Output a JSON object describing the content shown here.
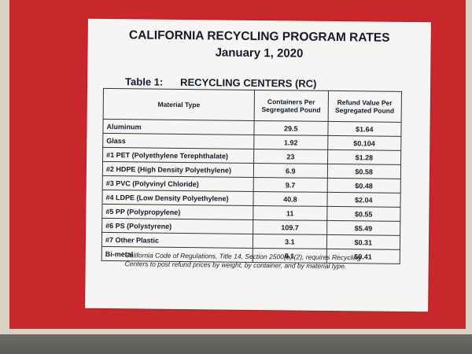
{
  "header": {
    "title": "CALIFORNIA RECYCLING PROGRAM RATES",
    "date": "January 1, 2020"
  },
  "table": {
    "label": "Table 1:",
    "caption": "RECYCLING CENTERS (RC)",
    "columns": [
      "Material Type",
      "Containers Per Segregated Pound",
      "Refund Value Per Segregated Pound"
    ],
    "rows": [
      [
        "Aluminum",
        29.5,
        "$1.64"
      ],
      [
        "Glass",
        1.92,
        "$0.104"
      ],
      [
        "#1 PET (Polyethylene Terephthalate)",
        23,
        "$1.28"
      ],
      [
        "#2 HDPE (High Density Polyethylene)",
        6.9,
        "$0.58"
      ],
      [
        "#3 PVC (Polyvinyl Chloride)",
        9.7,
        "$0.48"
      ],
      [
        "#4 LDPE (Low Density Polyethylene)",
        40.8,
        "$2.04"
      ],
      [
        "#5 PP (Polypropylene)",
        11,
        "$0.55"
      ],
      [
        "#6 PS (Polystyrene)",
        109.7,
        "$5.49"
      ],
      [
        "#7 Other Plastic",
        3.1,
        "$0.31"
      ],
      [
        "Bi-metal",
        8.1,
        "$0.41"
      ]
    ]
  },
  "footnote": "California Code of Regulations, Title 14, Section 2500(e) (2), requires Recycling Centers to post refund prices by weight, by container, and by material type."
}
